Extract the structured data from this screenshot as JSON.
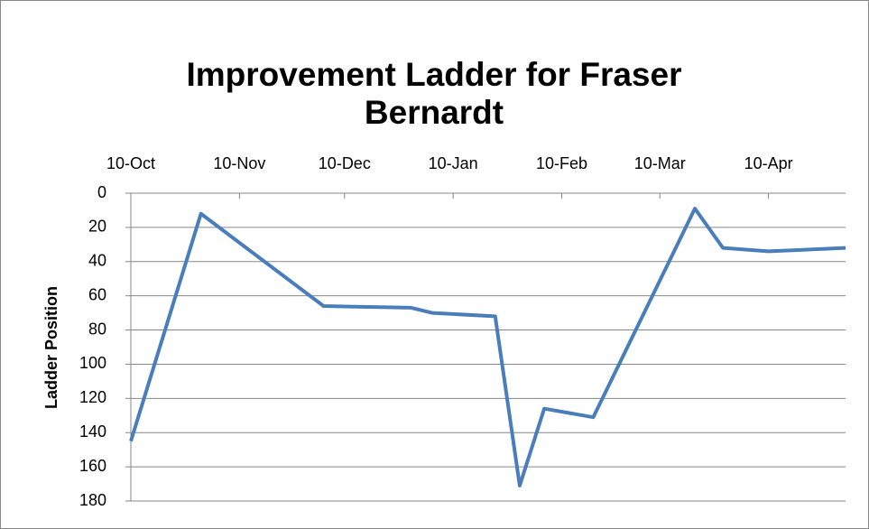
{
  "chart_data": {
    "type": "line",
    "title": "Improvement Ladder for Fraser Bernardt",
    "y_label": "Ladder Position",
    "x": [
      0,
      20,
      55,
      80,
      86,
      104,
      111,
      118,
      132,
      161,
      169,
      182,
      204
    ],
    "series": [
      {
        "name": "Ladder Position",
        "color": "#4a7ebb",
        "values": [
          145,
          12,
          66,
          67,
          70,
          72,
          171,
          126,
          131,
          9,
          32,
          34,
          32
        ]
      }
    ],
    "xlim": [
      0,
      204
    ],
    "xticks": [
      {
        "value": 0,
        "label": "10-Oct"
      },
      {
        "value": 31,
        "label": "10-Nov"
      },
      {
        "value": 61,
        "label": "10-Dec"
      },
      {
        "value": 92,
        "label": "10-Jan"
      },
      {
        "value": 123,
        "label": "10-Feb"
      },
      {
        "value": 151,
        "label": "10-Mar"
      },
      {
        "value": 182,
        "label": "10-Apr"
      }
    ],
    "x_axis_position": "top",
    "ylim": [
      0,
      180
    ],
    "y_inverted": true,
    "yticks": [
      0,
      20,
      40,
      60,
      80,
      100,
      120,
      140,
      160,
      180
    ],
    "grid": true,
    "legend": false
  }
}
